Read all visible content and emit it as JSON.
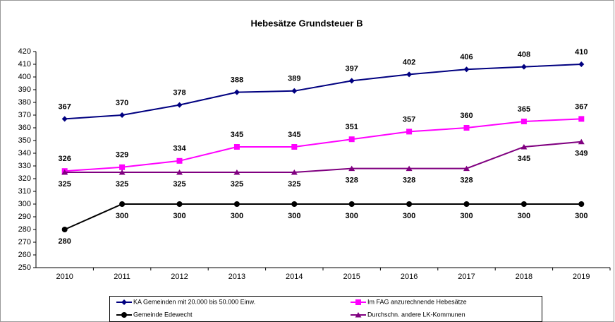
{
  "chart_data": {
    "type": "line",
    "title": "Hebesätze Grundsteuer B",
    "categories": [
      "2010",
      "2011",
      "2012",
      "2013",
      "2014",
      "2015",
      "2016",
      "2017",
      "2018",
      "2019"
    ],
    "series": [
      {
        "name": "KA Gemeinden mit 20.000 bis 50.000 Einw.",
        "color": "#000080",
        "marker": "diamond",
        "label_position": "above",
        "values": [
          367,
          370,
          378,
          388,
          389,
          397,
          402,
          406,
          408,
          410
        ]
      },
      {
        "name": "Im FAG anzurechnende Hebesätze",
        "color": "#ff00ff",
        "marker": "square",
        "label_position": "above",
        "values": [
          326,
          329,
          334,
          345,
          345,
          351,
          357,
          360,
          365,
          367
        ]
      },
      {
        "name": "Gemeinde Edewecht",
        "color": "#000000",
        "marker": "circle",
        "label_position": "below",
        "values": [
          280,
          300,
          300,
          300,
          300,
          300,
          300,
          300,
          300,
          300
        ]
      },
      {
        "name": "Durchschn. andere LK-Kommunen",
        "color": "#800080",
        "marker": "triangle",
        "label_position": "below",
        "values": [
          325,
          325,
          325,
          325,
          325,
          328,
          328,
          328,
          345,
          349
        ]
      }
    ],
    "ylim": [
      250,
      420
    ],
    "yticks": [
      250,
      260,
      270,
      280,
      290,
      300,
      310,
      320,
      330,
      340,
      350,
      360,
      370,
      380,
      390,
      400,
      410,
      420
    ],
    "grid": false,
    "legend": "bottom"
  }
}
